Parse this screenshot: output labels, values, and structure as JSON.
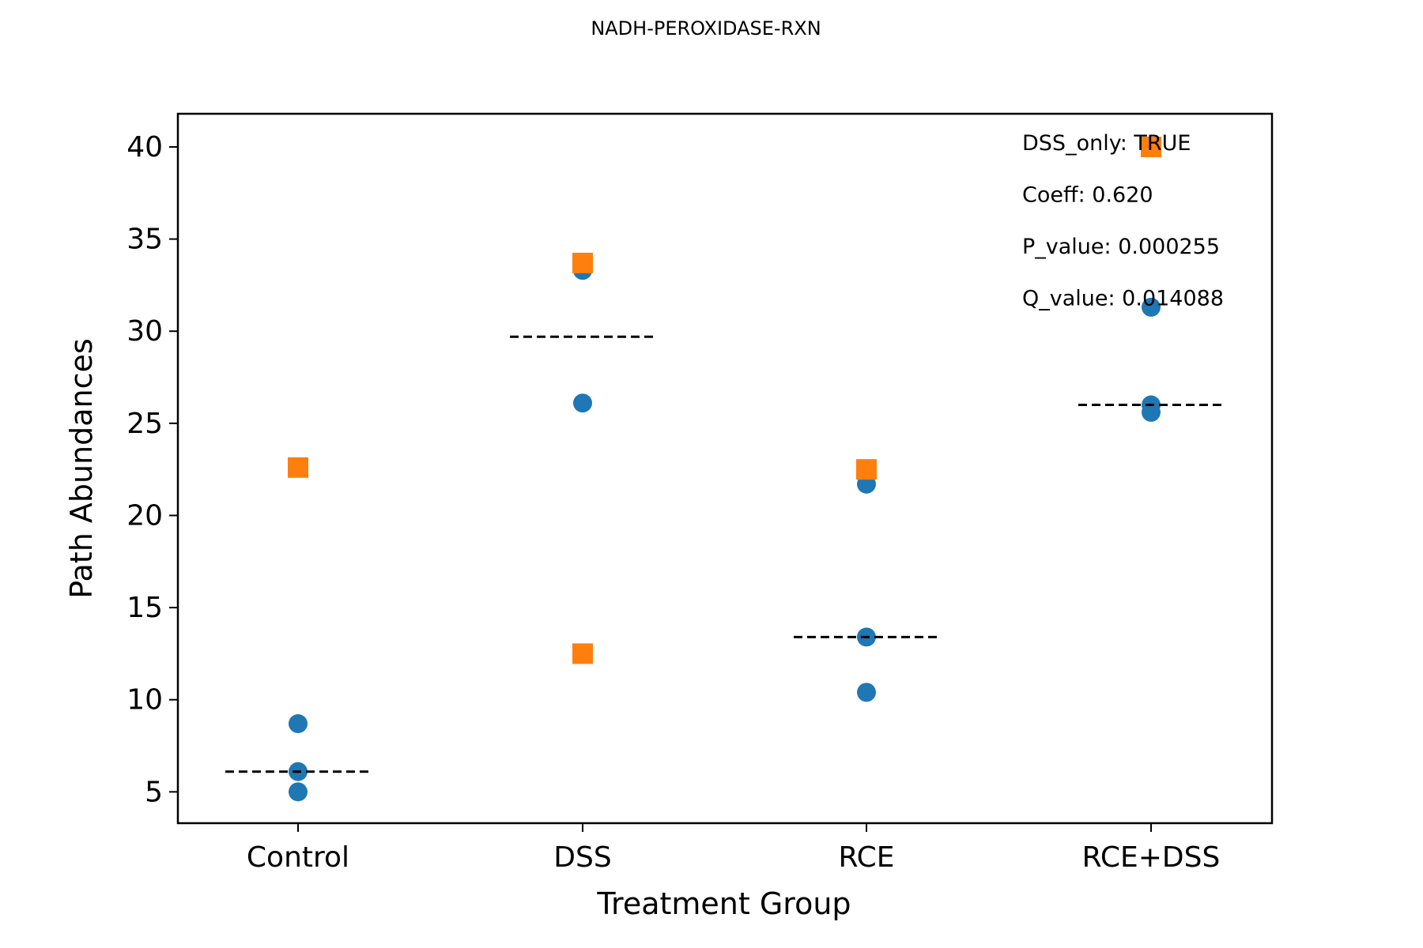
{
  "chart_data": {
    "type": "scatter",
    "title": "NADH-PEROXIDASE-RXN",
    "xlabel": "Treatment Group",
    "ylabel": "Path Abundances",
    "categories": [
      "Control",
      "DSS",
      "RCE",
      "RCE+DSS"
    ],
    "ylim": [
      3.3,
      41.8
    ],
    "yticks": [
      "5",
      "10",
      "15",
      "20",
      "25",
      "30",
      "35",
      "40"
    ],
    "grid": false,
    "colors": {
      "circle": "#1f77b4",
      "square": "#ff7f0e",
      "mean": "#000000"
    },
    "series": [
      {
        "marker": "circle",
        "points": [
          {
            "x": "Control",
            "y": 8.7
          },
          {
            "x": "Control",
            "y": 6.1
          },
          {
            "x": "Control",
            "y": 5.0
          },
          {
            "x": "DSS",
            "y": 33.3
          },
          {
            "x": "DSS",
            "y": 26.1
          },
          {
            "x": "RCE",
            "y": 21.7
          },
          {
            "x": "RCE",
            "y": 13.4
          },
          {
            "x": "RCE",
            "y": 10.4
          },
          {
            "x": "RCE+DSS",
            "y": 31.3
          },
          {
            "x": "RCE+DSS",
            "y": 26.0
          },
          {
            "x": "RCE+DSS",
            "y": 25.6
          }
        ]
      },
      {
        "marker": "square",
        "points": [
          {
            "x": "Control",
            "y": 22.6
          },
          {
            "x": "DSS",
            "y": 33.7
          },
          {
            "x": "DSS",
            "y": 12.5
          },
          {
            "x": "RCE",
            "y": 22.5
          },
          {
            "x": "RCE+DSS",
            "y": 40.0
          }
        ]
      }
    ],
    "means": [
      {
        "x": "Control",
        "y": 6.1
      },
      {
        "x": "DSS",
        "y": 29.7
      },
      {
        "x": "RCE",
        "y": 13.4
      },
      {
        "x": "RCE+DSS",
        "y": 26.0
      }
    ],
    "annotations": [
      "DSS_only: TRUE",
      "Coeff: 0.620",
      "P_value: 0.000255",
      "Q_value: 0.014088"
    ]
  }
}
